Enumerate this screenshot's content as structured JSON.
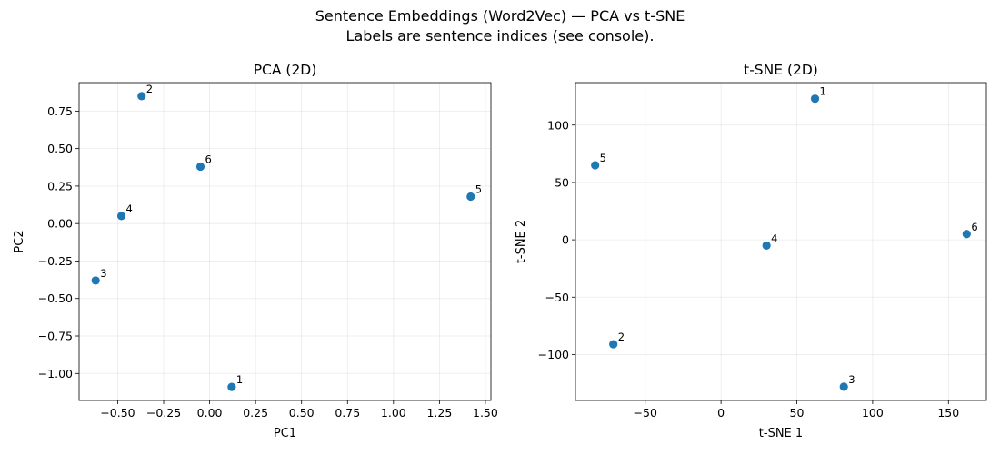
{
  "suptitle": {
    "line1": "Sentence Embeddings (Word2Vec) — PCA vs t-SNE",
    "line2": "Labels are sentence indices (see console)."
  },
  "colors": {
    "points": "#1f77b4",
    "grid": "#b0b0b0"
  },
  "chart_data": [
    {
      "type": "scatter",
      "title": "PCA (2D)",
      "xlabel": "PC1",
      "ylabel": "PC2",
      "xlim": [
        -0.71,
        1.53
      ],
      "ylim": [
        -1.18,
        0.94
      ],
      "xticks": [
        -0.5,
        -0.25,
        0.0,
        0.25,
        0.5,
        0.75,
        1.0,
        1.25,
        1.5
      ],
      "xtick_labels": [
        "−0.50",
        "−0.25",
        "0.00",
        "0.25",
        "0.50",
        "0.75",
        "1.00",
        "1.25",
        "1.50"
      ],
      "yticks": [
        -1.0,
        -0.75,
        -0.5,
        -0.25,
        0.0,
        0.25,
        0.5,
        0.75
      ],
      "ytick_labels": [
        "−1.00",
        "−0.75",
        "−0.50",
        "−0.25",
        "0.00",
        "0.25",
        "0.50",
        "0.75"
      ],
      "grid": true,
      "points": [
        {
          "label": "1",
          "x": 0.12,
          "y": -1.09
        },
        {
          "label": "2",
          "x": -0.37,
          "y": 0.85
        },
        {
          "label": "3",
          "x": -0.62,
          "y": -0.38
        },
        {
          "label": "4",
          "x": -0.48,
          "y": 0.05
        },
        {
          "label": "5",
          "x": 1.42,
          "y": 0.18
        },
        {
          "label": "6",
          "x": -0.05,
          "y": 0.38
        }
      ]
    },
    {
      "type": "scatter",
      "title": "t-SNE (2D)",
      "xlabel": "t-SNE 1",
      "ylabel": "t-SNE 2",
      "xlim": [
        -96,
        175
      ],
      "ylim": [
        -140,
        137
      ],
      "xticks": [
        -50,
        0,
        50,
        100,
        150
      ],
      "xtick_labels": [
        "−50",
        "0",
        "50",
        "100",
        "150"
      ],
      "yticks": [
        -100,
        -50,
        0,
        50,
        100
      ],
      "ytick_labels": [
        "−100",
        "−50",
        "0",
        "50",
        "100"
      ],
      "grid": true,
      "points": [
        {
          "label": "1",
          "x": 62,
          "y": 123
        },
        {
          "label": "2",
          "x": -71,
          "y": -91
        },
        {
          "label": "3",
          "x": 81,
          "y": -128
        },
        {
          "label": "4",
          "x": 30,
          "y": -5
        },
        {
          "label": "5",
          "x": -83,
          "y": 65
        },
        {
          "label": "6",
          "x": 162,
          "y": 5
        }
      ]
    }
  ]
}
